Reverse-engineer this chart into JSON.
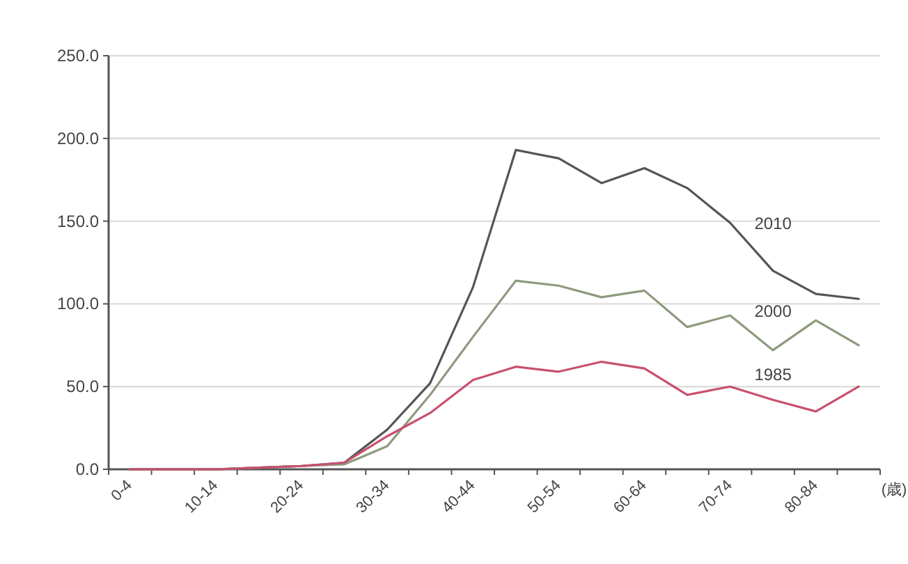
{
  "chart_data": {
    "type": "line",
    "xlabel": "(歳)",
    "categories": [
      "0-4",
      null,
      "10-14",
      null,
      "20-24",
      null,
      "30-34",
      null,
      "40-44",
      null,
      "50-54",
      null,
      "60-64",
      null,
      "70-74",
      null,
      "80-84",
      null
    ],
    "series": [
      {
        "name": "2010",
        "color": "#555555",
        "values": [
          0,
          0,
          0,
          1,
          2,
          4,
          24,
          52,
          110,
          193,
          188,
          173,
          182,
          170,
          149,
          120,
          106,
          103
        ]
      },
      {
        "name": "2000",
        "color": "#8d9a7e",
        "values": [
          0,
          0,
          0,
          1,
          2,
          3,
          14,
          45,
          80,
          114,
          111,
          104,
          108,
          86,
          93,
          72,
          90,
          75
        ]
      },
      {
        "name": "1985",
        "color": "#c8506e",
        "values": [
          0,
          0,
          0,
          1,
          2,
          4,
          20,
          34,
          54,
          62,
          59,
          65,
          61,
          45,
          50,
          42,
          35,
          50
        ]
      }
    ],
    "ylim": [
      0,
      250
    ],
    "yticks": [
      {
        "value": 0,
        "label": "0.0"
      },
      {
        "value": 50,
        "label": "50.0"
      },
      {
        "value": 100,
        "label": "100.0"
      },
      {
        "value": 150,
        "label": "150.0"
      },
      {
        "value": 200,
        "label": "200.0"
      },
      {
        "value": 250,
        "label": "250.0"
      }
    ],
    "grid": "y",
    "legend": false,
    "marker": "none",
    "line_style": "solid"
  }
}
